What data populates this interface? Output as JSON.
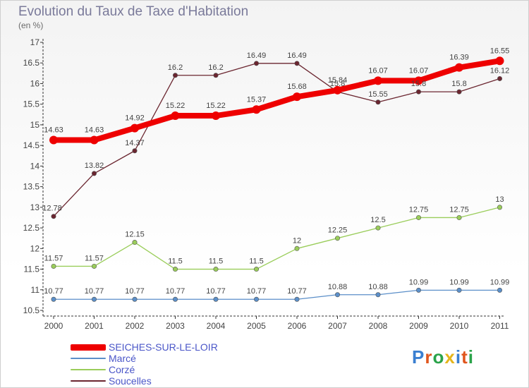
{
  "title": "Evolution du Taux de Taxe d'Habitation",
  "unit": "(en %)",
  "logo": {
    "text": "Proxiti",
    "letters": [
      "P",
      "r",
      "o",
      "x",
      "i",
      "t",
      "i"
    ],
    "colors": [
      "#3a7fd1",
      "#e0561d",
      "#2aa349",
      "#e5b51c",
      "#3a7fd1",
      "#e0561d",
      "#2aa349"
    ]
  },
  "chart_data": {
    "type": "line",
    "categories": [
      "2000",
      "2001",
      "2002",
      "2003",
      "2004",
      "2005",
      "2006",
      "2007",
      "2008",
      "2009",
      "2010",
      "2011"
    ],
    "ylim": [
      10.5,
      17
    ],
    "yticks": [
      "10.5",
      "11",
      "11.5",
      "12",
      "12.5",
      "13",
      "13.5",
      "14",
      "14.5",
      "15",
      "15.5",
      "16",
      "16.5",
      "17"
    ],
    "grid": false,
    "legend_position": "bottom-left",
    "series": [
      {
        "name": "SEICHES-SUR-LE-LOIR",
        "color": "#ee0000",
        "values": [
          14.63,
          14.63,
          14.92,
          15.22,
          15.22,
          15.37,
          15.68,
          15.84,
          16.07,
          16.07,
          16.39,
          16.55
        ],
        "labels": [
          "14.63",
          "14.63",
          "14.92",
          "15.22",
          "15.22",
          "15.37",
          "15.68",
          "15.84",
          "16.07",
          "16.07",
          "16.39",
          "16.55"
        ]
      },
      {
        "name": "Marcé",
        "color": "#5b8fc9",
        "values": [
          10.77,
          10.77,
          10.77,
          10.77,
          10.77,
          10.77,
          10.77,
          10.88,
          10.88,
          10.99,
          10.99,
          10.99
        ],
        "labels": [
          "10.77",
          "10.77",
          "10.77",
          "10.77",
          "10.77",
          "10.77",
          "10.77",
          "10.88",
          "10.88",
          "10.99",
          "10.99",
          "10.99"
        ]
      },
      {
        "name": "Corzé",
        "color": "#9acd5a",
        "values": [
          11.57,
          11.57,
          12.15,
          11.5,
          11.5,
          11.5,
          12,
          12.25,
          12.5,
          12.75,
          12.75,
          13
        ],
        "labels": [
          "11.57",
          "11.57",
          "12.15",
          "11.5",
          "11.5",
          "11.5",
          "12",
          "12.25",
          "12.5",
          "12.75",
          "12.75",
          "13"
        ]
      },
      {
        "name": "Soucelles",
        "color": "#6b2630",
        "values": [
          12.78,
          13.82,
          14.37,
          16.2,
          16.2,
          16.49,
          16.49,
          15.8,
          15.55,
          15.8,
          15.8,
          16.12
        ],
        "labels": [
          "12.78",
          "13.82",
          "14.37",
          "16.2",
          "16.2",
          "16.49",
          "16.49",
          "15.8",
          "15.55",
          "15.8",
          "15.8",
          "16.12"
        ]
      }
    ]
  }
}
